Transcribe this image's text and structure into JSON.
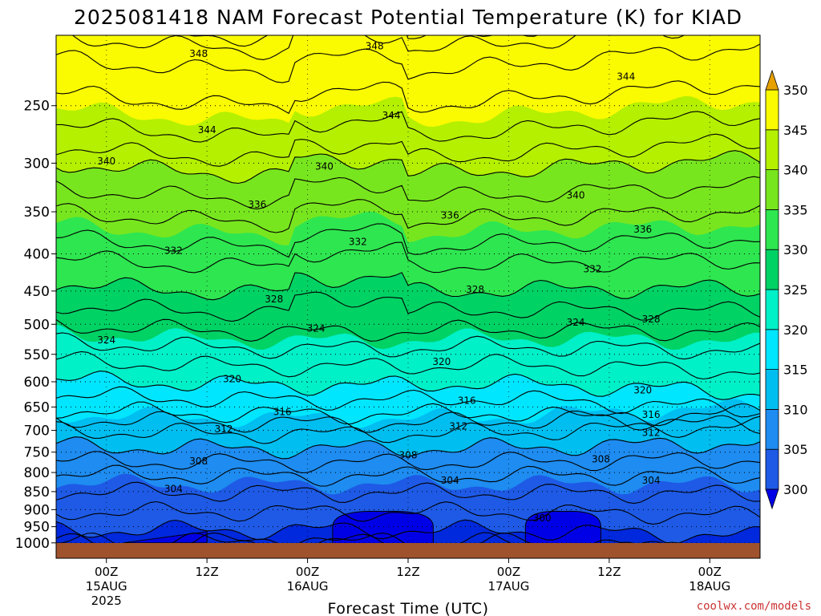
{
  "chart_data": {
    "type": "heatmap",
    "title": "2025081418 NAM Forecast Potential Temperature (K) for KIAD",
    "xlabel": "Forecast Time (UTC)",
    "x_ticks": [
      {
        "hour": 6,
        "label": "00Z",
        "sub1": "15AUG",
        "sub2": "2025"
      },
      {
        "hour": 18,
        "label": "12Z",
        "sub1": "",
        "sub2": ""
      },
      {
        "hour": 30,
        "label": "00Z",
        "sub1": "16AUG",
        "sub2": ""
      },
      {
        "hour": 42,
        "label": "12Z",
        "sub1": "",
        "sub2": ""
      },
      {
        "hour": 54,
        "label": "00Z",
        "sub1": "17AUG",
        "sub2": ""
      },
      {
        "hour": 66,
        "label": "12Z",
        "sub1": "",
        "sub2": ""
      },
      {
        "hour": 78,
        "label": "00Z",
        "sub1": "18AUG",
        "sub2": ""
      }
    ],
    "x_range_hours": [
      0,
      84
    ],
    "y_scale": "log-pressure",
    "y_range_hpa": [
      1050,
      200
    ],
    "y_ticks_hpa": [
      250,
      300,
      350,
      400,
      450,
      500,
      550,
      600,
      650,
      700,
      750,
      800,
      850,
      900,
      950,
      1000
    ],
    "grid": "dotted",
    "contour_interval_k": 2,
    "contour_label_values": [
      {
        "value": 348,
        "hour": 17,
        "hpa": 212
      },
      {
        "value": 348,
        "hour": 38,
        "hpa": 207
      },
      {
        "value": 344,
        "hour": 68,
        "hpa": 228
      },
      {
        "value": 344,
        "hour": 40,
        "hpa": 258
      },
      {
        "value": 344,
        "hour": 18,
        "hpa": 270
      },
      {
        "value": 340,
        "hour": 6,
        "hpa": 298
      },
      {
        "value": 340,
        "hour": 32,
        "hpa": 303
      },
      {
        "value": 340,
        "hour": 62,
        "hpa": 332
      },
      {
        "value": 336,
        "hour": 24,
        "hpa": 342
      },
      {
        "value": 336,
        "hour": 47,
        "hpa": 354
      },
      {
        "value": 336,
        "hour": 70,
        "hpa": 370
      },
      {
        "value": 332,
        "hour": 14,
        "hpa": 396
      },
      {
        "value": 332,
        "hour": 36,
        "hpa": 385
      },
      {
        "value": 332,
        "hour": 64,
        "hpa": 420
      },
      {
        "value": 328,
        "hour": 26,
        "hpa": 462
      },
      {
        "value": 328,
        "hour": 50,
        "hpa": 448
      },
      {
        "value": 328,
        "hour": 71,
        "hpa": 492
      },
      {
        "value": 324,
        "hour": 6,
        "hpa": 526
      },
      {
        "value": 324,
        "hour": 31,
        "hpa": 507
      },
      {
        "value": 324,
        "hour": 62,
        "hpa": 497
      },
      {
        "value": 320,
        "hour": 46,
        "hpa": 563
      },
      {
        "value": 320,
        "hour": 21,
        "hpa": 595
      },
      {
        "value": 320,
        "hour": 70,
        "hpa": 616
      },
      {
        "value": 316,
        "hour": 27,
        "hpa": 660
      },
      {
        "value": 316,
        "hour": 49,
        "hpa": 637
      },
      {
        "value": 316,
        "hour": 71,
        "hpa": 666
      },
      {
        "value": 312,
        "hour": 20,
        "hpa": 697
      },
      {
        "value": 312,
        "hour": 48,
        "hpa": 691
      },
      {
        "value": 312,
        "hour": 71,
        "hpa": 705
      },
      {
        "value": 308,
        "hour": 17,
        "hpa": 772
      },
      {
        "value": 308,
        "hour": 42,
        "hpa": 757
      },
      {
        "value": 308,
        "hour": 65,
        "hpa": 767
      },
      {
        "value": 304,
        "hour": 14,
        "hpa": 843
      },
      {
        "value": 304,
        "hour": 47,
        "hpa": 820
      },
      {
        "value": 304,
        "hour": 71,
        "hpa": 820
      },
      {
        "value": 300,
        "hour": 58,
        "hpa": 925
      }
    ],
    "colorbar": {
      "levels": [
        300,
        305,
        310,
        315,
        320,
        325,
        330,
        335,
        340,
        345,
        350
      ],
      "under_color": "#0000e6",
      "over_color": "#e6a000",
      "colors": [
        "#0028dc",
        "#1e5ae6",
        "#1e8cf0",
        "#00bef0",
        "#00e6ff",
        "#00f0c8",
        "#00d264",
        "#2ee650",
        "#78e61e",
        "#b4f000",
        "#fafa00"
      ]
    },
    "ground_color": "#a0522d",
    "contour_color": "#000000"
  },
  "credit": "coolwx.com/models"
}
